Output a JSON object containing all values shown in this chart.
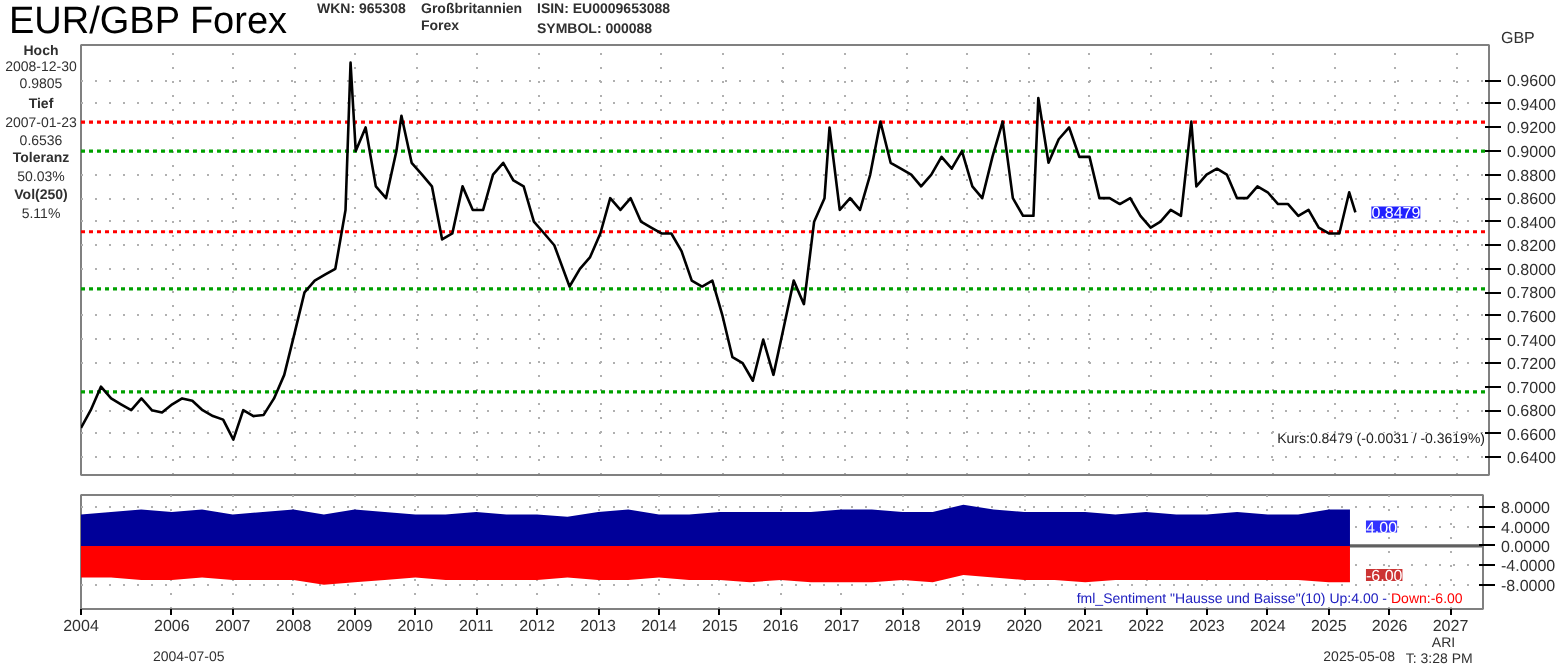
{
  "chart_data": [
    {
      "type": "line",
      "title": "EUR/GBP Forex",
      "ylabel": "GBP",
      "annotations": [
        "WKN: 965308",
        "Großbritannien\nForex",
        "ISIN: EU0009653088",
        "SYMBOL: 000088",
        "Hoch",
        "2008-12-30",
        "0.9805",
        "Tief",
        "2007-01-23",
        "0.6536",
        "Toleranz",
        "50.03%",
        "Vol(250)",
        "5.11%",
        "Kurs:0.8479 (-0.0031 / -0.3619%)",
        {
          "text": "0.8479",
          "x": "2025-05-08",
          "y": 0.8479
        }
      ],
      "x": [
        "2004-07-05",
        "2004-09",
        "2004-11",
        "2005-01",
        "2005-03",
        "2005-05",
        "2005-07",
        "2005-09",
        "2005-11",
        "2006-01",
        "2006-03",
        "2006-05",
        "2006-07",
        "2006-09",
        "2006-11",
        "2007-01",
        "2007-03",
        "2007-05",
        "2007-07",
        "2007-09",
        "2007-11",
        "2008-01",
        "2008-03",
        "2008-05",
        "2008-07",
        "2008-09",
        "2008-11",
        "2008-12",
        "2009-01",
        "2009-03",
        "2009-05",
        "2009-07",
        "2009-09",
        "2009-10",
        "2009-12",
        "2010-02",
        "2010-04",
        "2010-06",
        "2010-08",
        "2010-10",
        "2010-12",
        "2011-02",
        "2011-04",
        "2011-06",
        "2011-08",
        "2011-10",
        "2011-12",
        "2012-02",
        "2012-04",
        "2012-07",
        "2012-09",
        "2012-11",
        "2013-01",
        "2013-03",
        "2013-05",
        "2013-07",
        "2013-09",
        "2013-11",
        "2014-01",
        "2014-03",
        "2014-05",
        "2014-07",
        "2014-09",
        "2014-11",
        "2015-01",
        "2015-03",
        "2015-05",
        "2015-07",
        "2015-09",
        "2015-11",
        "2016-01",
        "2016-03",
        "2016-05",
        "2016-07",
        "2016-09",
        "2016-10",
        "2016-12",
        "2017-02",
        "2017-04",
        "2017-06",
        "2017-08",
        "2017-10",
        "2017-12",
        "2018-02",
        "2018-04",
        "2018-06",
        "2018-08",
        "2018-10",
        "2018-12",
        "2019-02",
        "2019-04",
        "2019-06",
        "2019-08",
        "2019-10",
        "2019-12",
        "2020-02",
        "2020-03",
        "2020-05",
        "2020-07",
        "2020-09",
        "2020-11",
        "2021-01",
        "2021-03",
        "2021-05",
        "2021-07",
        "2021-09",
        "2021-11",
        "2022-01",
        "2022-03",
        "2022-05",
        "2022-07",
        "2022-09",
        "2022-10",
        "2022-12",
        "2023-02",
        "2023-04",
        "2023-06",
        "2023-08",
        "2023-10",
        "2023-12",
        "2024-02",
        "2024-04",
        "2024-06",
        "2024-08",
        "2024-10",
        "2024-12",
        "2025-02",
        "2025-04",
        "2025-05-08"
      ],
      "series": [
        {
          "color": "#000000",
          "values": [
            0.665,
            0.68,
            0.7,
            0.69,
            0.685,
            0.68,
            0.69,
            0.68,
            0.678,
            0.685,
            0.69,
            0.688,
            0.68,
            0.675,
            0.672,
            0.655,
            0.68,
            0.675,
            0.676,
            0.69,
            0.71,
            0.745,
            0.78,
            0.79,
            0.795,
            0.8,
            0.85,
            0.975,
            0.9,
            0.92,
            0.87,
            0.86,
            0.9,
            0.93,
            0.89,
            0.88,
            0.87,
            0.825,
            0.83,
            0.87,
            0.85,
            0.85,
            0.88,
            0.89,
            0.875,
            0.87,
            0.84,
            0.83,
            0.82,
            0.785,
            0.8,
            0.81,
            0.83,
            0.86,
            0.85,
            0.86,
            0.84,
            0.835,
            0.83,
            0.83,
            0.815,
            0.79,
            0.785,
            0.79,
            0.76,
            0.725,
            0.72,
            0.705,
            0.74,
            0.71,
            0.75,
            0.79,
            0.77,
            0.84,
            0.86,
            0.92,
            0.85,
            0.86,
            0.85,
            0.88,
            0.925,
            0.89,
            0.885,
            0.88,
            0.87,
            0.88,
            0.895,
            0.885,
            0.9,
            0.87,
            0.86,
            0.895,
            0.925,
            0.86,
            0.845,
            0.845,
            0.945,
            0.89,
            0.91,
            0.92,
            0.895,
            0.895,
            0.86,
            0.86,
            0.855,
            0.86,
            0.845,
            0.835,
            0.84,
            0.85,
            0.845,
            0.925,
            0.87,
            0.88,
            0.885,
            0.88,
            0.86,
            0.86,
            0.87,
            0.865,
            0.855,
            0.855,
            0.845,
            0.85,
            0.835,
            0.83,
            0.83,
            0.865,
            0.848
          ]
        }
      ],
      "xlim": [
        "2004-07-05",
        "2027-07-15"
      ],
      "xticks": [
        {
          "value": "2004-07-05",
          "label": null
        },
        {
          "value": "2006",
          "label": null
        },
        {
          "value": "2007",
          "label": null
        },
        {
          "value": "2008",
          "label": null
        },
        {
          "value": "2009",
          "label": null
        },
        {
          "value": "2010",
          "label": null
        },
        {
          "value": "2011",
          "label": null
        },
        {
          "value": "2012",
          "label": null
        },
        {
          "value": "2013",
          "label": null
        },
        {
          "value": "2014",
          "label": null
        },
        {
          "value": "2015",
          "label": null
        },
        {
          "value": "2016",
          "label": null
        },
        {
          "value": "2017",
          "label": null
        },
        {
          "value": "2018",
          "label": null
        },
        {
          "value": "2019",
          "label": null
        },
        {
          "value": "2020",
          "label": null
        },
        {
          "value": "2021",
          "label": null
        },
        {
          "value": "2022",
          "label": null
        },
        {
          "value": "2023",
          "label": null
        },
        {
          "value": "2024",
          "label": null
        },
        {
          "value": "2025",
          "label": null
        },
        {
          "value": "2026",
          "label": null
        },
        {
          "value": "2027",
          "label": null
        }
      ],
      "ylim": [
        0.625,
        0.99
      ],
      "yticks": [
        {
          "value": 0.64,
          "label": "0.6400"
        },
        {
          "value": 0.66,
          "label": "0.6600"
        },
        {
          "value": 0.68,
          "label": "0.6800"
        },
        {
          "value": 0.7,
          "label": "0.7000"
        },
        {
          "value": 0.72,
          "label": "0.7200"
        },
        {
          "value": 0.74,
          "label": "0.7400"
        },
        {
          "value": 0.76,
          "label": "0.7600"
        },
        {
          "value": 0.78,
          "label": "0.7800"
        },
        {
          "value": 0.8,
          "label": "0.8000"
        },
        {
          "value": 0.82,
          "label": "0.8200"
        },
        {
          "value": 0.84,
          "label": "0.8400"
        },
        {
          "value": 0.86,
          "label": "0.8600"
        },
        {
          "value": 0.88,
          "label": "0.8800"
        },
        {
          "value": 0.9,
          "label": "0.9000"
        },
        {
          "value": 0.92,
          "label": "0.9200"
        },
        {
          "value": 0.94,
          "label": "0.9400"
        },
        {
          "value": 0.96,
          "label": "0.9600"
        }
      ],
      "ref_lines": [
        {
          "axis": "y",
          "value": 0.9245,
          "color": "#ff0000",
          "line_style": "dotted"
        },
        {
          "axis": "y",
          "value": 0.9,
          "color": "#00a000",
          "line_style": "dotted"
        },
        {
          "axis": "y",
          "value": 0.8315,
          "color": "#ff0000",
          "line_style": "dotted"
        },
        {
          "axis": "y",
          "value": 0.783,
          "color": "#00a000",
          "line_style": "dotted"
        },
        {
          "axis": "y",
          "value": 0.6955,
          "color": "#00a000",
          "line_style": "dotted"
        }
      ],
      "grid": true,
      "tick_labels": "y",
      "line_style": "solid",
      "marker": "none"
    },
    {
      "type": "area",
      "annotations": [
        "fml_Sentiment \"Hausse und Baisse\"(10) Up:4.00 -",
        "Down:-6.00",
        {
          "text": "4.00",
          "x": "2025-05-08",
          "y": 4
        },
        {
          "text": "-6.00",
          "x": "2025-05-08",
          "y": -6
        },
        "2004-07-05",
        "2025-05-08",
        "ARI",
        "T: 3:28 PM"
      ],
      "x": [
        "2004-07-05",
        "2005-01",
        "2005-07",
        "2006-01",
        "2006-07",
        "2007-01",
        "2007-07",
        "2008-01",
        "2008-07",
        "2009-01",
        "2009-07",
        "2010-01",
        "2010-07",
        "2011-01",
        "2011-07",
        "2012-01",
        "2012-07",
        "2013-01",
        "2013-07",
        "2014-01",
        "2014-07",
        "2015-01",
        "2015-07",
        "2016-01",
        "2016-07",
        "2017-01",
        "2017-07",
        "2018-01",
        "2018-07",
        "2019-01",
        "2019-07",
        "2020-01",
        "2020-07",
        "2021-01",
        "2021-07",
        "2022-01",
        "2022-07",
        "2023-01",
        "2023-07",
        "2024-01",
        "2024-07",
        "2025-01",
        "2025-05-08"
      ],
      "series": [
        {
          "color": "#000099",
          "values": [
            6.5,
            7,
            7.5,
            7,
            7.5,
            6.5,
            7,
            7.5,
            6.5,
            7.5,
            7,
            6.5,
            6.5,
            7,
            6.5,
            6.5,
            6,
            7,
            7.5,
            6.5,
            6.5,
            7,
            7,
            7,
            7,
            7.5,
            7.5,
            7,
            7,
            8.5,
            7.5,
            7,
            7,
            7,
            6.5,
            7,
            6.5,
            6.5,
            7,
            6.5,
            6.5,
            7.5,
            7.5
          ]
        },
        {
          "color": "#ff0000",
          "values": [
            -6.5,
            -6.5,
            -7,
            -7,
            -6.5,
            -7,
            -7,
            -7,
            -8,
            -7.5,
            -7,
            -6.5,
            -7,
            -7,
            -7,
            -7,
            -6.5,
            -7,
            -7,
            -6.5,
            -7,
            -7,
            -7.5,
            -7,
            -7.5,
            -7.5,
            -7.5,
            -7,
            -7.5,
            -6,
            -6.5,
            -7,
            -7,
            -7.5,
            -7,
            -7,
            -7,
            -7,
            -7,
            -7,
            -7,
            -7.5,
            -7.5
          ]
        }
      ],
      "xlim": [
        "2004-07-05",
        "2027-07-15"
      ],
      "xticks": [
        {
          "value": "2004-07-05",
          "label": "2004"
        },
        {
          "value": "2006",
          "label": "2006"
        },
        {
          "value": "2007",
          "label": "2007"
        },
        {
          "value": "2008",
          "label": "2008"
        },
        {
          "value": "2009",
          "label": "2009"
        },
        {
          "value": "2010",
          "label": "2010"
        },
        {
          "value": "2011",
          "label": "2011"
        },
        {
          "value": "2012",
          "label": "2012"
        },
        {
          "value": "2013",
          "label": "2013"
        },
        {
          "value": "2014",
          "label": "2014"
        },
        {
          "value": "2015",
          "label": "2015"
        },
        {
          "value": "2016",
          "label": "2016"
        },
        {
          "value": "2017",
          "label": "2017"
        },
        {
          "value": "2018",
          "label": "2018"
        },
        {
          "value": "2019",
          "label": "2019"
        },
        {
          "value": "2020",
          "label": "2020"
        },
        {
          "value": "2021",
          "label": "2021"
        },
        {
          "value": "2022",
          "label": "2022"
        },
        {
          "value": "2023",
          "label": "2023"
        },
        {
          "value": "2024",
          "label": "2024"
        },
        {
          "value": "2025",
          "label": "2025"
        },
        {
          "value": "2026",
          "label": "2026"
        },
        {
          "value": "2027",
          "label": "2027"
        }
      ],
      "ylim": [
        -13,
        10.5
      ],
      "yticks": [
        {
          "value": 8,
          "label": "8.0000"
        },
        {
          "value": 4,
          "label": "4.0000"
        },
        {
          "value": 0,
          "label": "0.0000"
        },
        {
          "value": -4,
          "label": "-4.0000"
        },
        {
          "value": -8,
          "label": "-8.0000"
        }
      ],
      "ref_lines": [
        {
          "axis": "y",
          "value": 0,
          "color": "#606060",
          "line_style": "solid"
        }
      ],
      "grid": true
    }
  ]
}
